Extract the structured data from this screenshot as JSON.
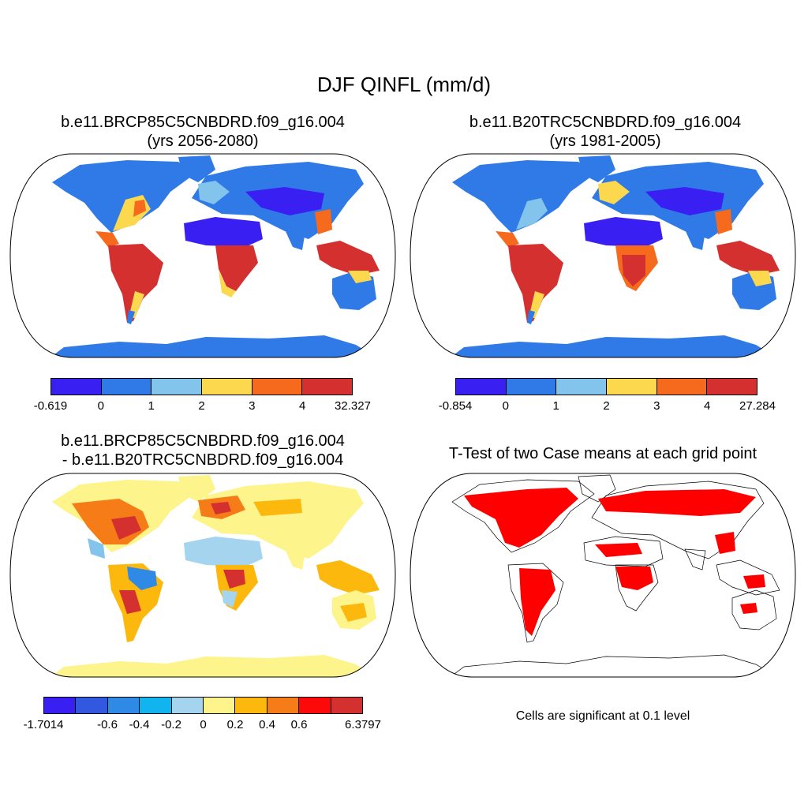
{
  "title": "DJF QINFL (mm/d)",
  "panels": {
    "top_left": {
      "title_line1": "b.e11.BRCP85C5CNBDRD.f09_g16.004",
      "title_line2": "(yrs 2056-2080)",
      "colorbar": {
        "colors": [
          "#3a1ff2",
          "#2f7ae6",
          "#82c4ec",
          "#fbd84e",
          "#f56a1c",
          "#d4302f"
        ],
        "tick_labels": [
          "-0.619",
          "0",
          "1",
          "2",
          "3",
          "4",
          "32.327"
        ]
      }
    },
    "top_right": {
      "title_line1": "b.e11.B20TRC5CNBDRD.f09_g16.004",
      "title_line2": "(yrs 1981-2005)",
      "colorbar": {
        "colors": [
          "#3a1ff2",
          "#2f7ae6",
          "#82c4ec",
          "#fbd84e",
          "#f56a1c",
          "#d4302f"
        ],
        "tick_labels": [
          "-0.854",
          "0",
          "1",
          "2",
          "3",
          "4",
          "27.284"
        ]
      }
    },
    "bottom_left": {
      "title_line1": "b.e11.BRCP85C5CNBDRD.f09_g16.004",
      "title_line2": "- b.e11.B20TRC5CNBDRD.f09_g16.004",
      "colorbar": {
        "colors": [
          "#3a1ff2",
          "#3358e0",
          "#2f8ae6",
          "#12b4f0",
          "#a4d4ee",
          "#fdf48c",
          "#fdb80e",
          "#f57c16",
          "#fc0a0a",
          "#d4302f"
        ],
        "tick_labels": [
          "-1.7014",
          "-0.6",
          "-0.4",
          "-0.2",
          "0",
          "0.2",
          "0.4",
          "0.6",
          "6.3797"
        ]
      }
    },
    "bottom_right": {
      "title": "T-Test of two Case means at each grid point",
      "note": "Cells are significant at 0.1 level",
      "significance_color": "#ff0000"
    }
  }
}
